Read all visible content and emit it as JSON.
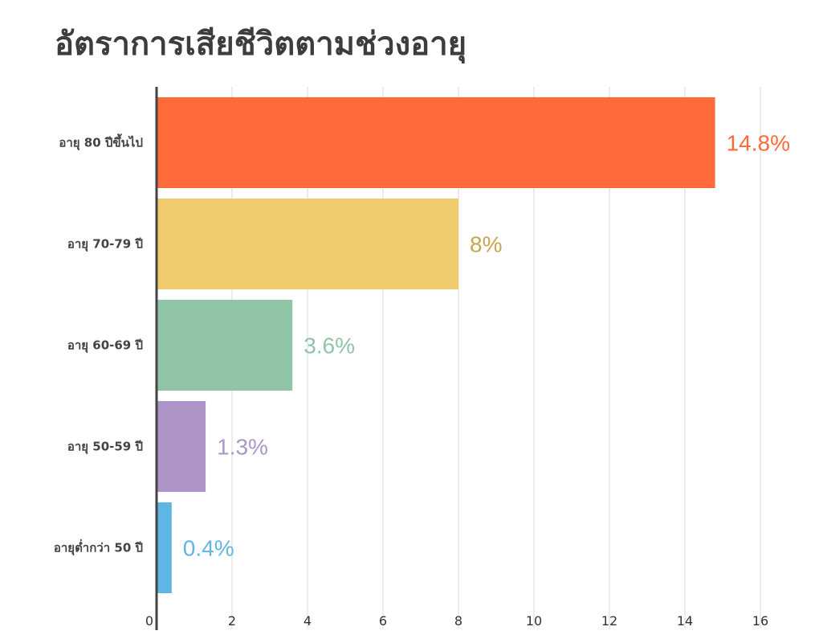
{
  "chart_data": {
    "type": "bar",
    "orientation": "horizontal",
    "title": "อัตราการเสียชีวิตตามช่วงอายุ",
    "categories": [
      "อายุ 80 ปีขึ้นไป",
      "อายุ 70-79 ปี",
      "อายุ 60-69 ปี",
      "อายุ 50-59 ปี",
      "อายุต่ำกว่า 50 ปี"
    ],
    "values": [
      14.8,
      8,
      3.6,
      1.3,
      0.4
    ],
    "data_labels": [
      "14.8%",
      "8%",
      "3.6%",
      "1.3%",
      "0.4%"
    ],
    "colors": [
      "#ff6a3a",
      "#f0cb6b",
      "#8fc4a7",
      "#ad94c9",
      "#5eb6e2"
    ],
    "label_colors": [
      "#ff6a3a",
      "#c9a450",
      "#8fc4a7",
      "#ad94c9",
      "#5eb6e2"
    ],
    "xlim": [
      0,
      16
    ],
    "x_ticks": [
      "0",
      "2",
      "4",
      "6",
      "8",
      "10",
      "12",
      "14",
      "16"
    ],
    "grid": true,
    "xlabel": "",
    "ylabel": ""
  }
}
